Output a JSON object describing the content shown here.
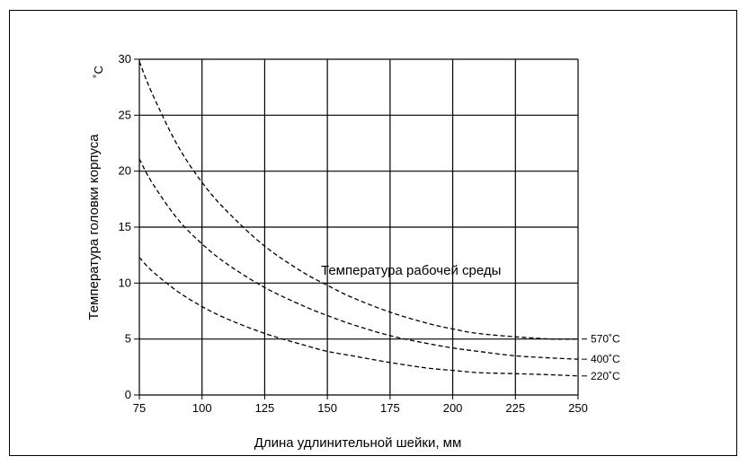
{
  "chart_data": {
    "type": "line",
    "title": "",
    "xlabel": "Длина удлинительной шейки, мм",
    "ylabel": "Температура головки корпуса",
    "yunit": "˚C",
    "annotation": "Температура рабочей среды",
    "xlim": [
      75,
      250
    ],
    "ylim": [
      0,
      30
    ],
    "xticks": [
      75,
      100,
      125,
      150,
      175,
      200,
      225,
      250
    ],
    "yticks": [
      0,
      5,
      10,
      15,
      20,
      25,
      30
    ],
    "grid": true,
    "line_style": "dashed",
    "series": [
      {
        "label": "570˚C",
        "x": [
          75,
          80,
          90,
          100,
          110,
          125,
          140,
          150,
          160,
          175,
          190,
          200,
          210,
          225,
          240,
          250
        ],
        "y": [
          29.8,
          27.0,
          22.4,
          19.0,
          16.4,
          13.3,
          11.0,
          9.8,
          8.7,
          7.4,
          6.4,
          5.9,
          5.5,
          5.2,
          5.0,
          5.0
        ]
      },
      {
        "label": "400˚C",
        "x": [
          75,
          80,
          90,
          100,
          110,
          125,
          140,
          150,
          160,
          175,
          190,
          200,
          210,
          225,
          240,
          250
        ],
        "y": [
          21.1,
          19.0,
          15.8,
          13.5,
          11.7,
          9.6,
          8.0,
          7.1,
          6.3,
          5.3,
          4.6,
          4.2,
          3.9,
          3.5,
          3.3,
          3.2
        ]
      },
      {
        "label": "220˚C",
        "x": [
          75,
          80,
          90,
          100,
          110,
          125,
          140,
          150,
          160,
          175,
          190,
          200,
          210,
          225,
          240,
          250
        ],
        "y": [
          12.3,
          11.1,
          9.3,
          7.9,
          6.8,
          5.5,
          4.5,
          3.9,
          3.5,
          2.9,
          2.4,
          2.2,
          2.0,
          1.9,
          1.8,
          1.7
        ]
      }
    ]
  }
}
